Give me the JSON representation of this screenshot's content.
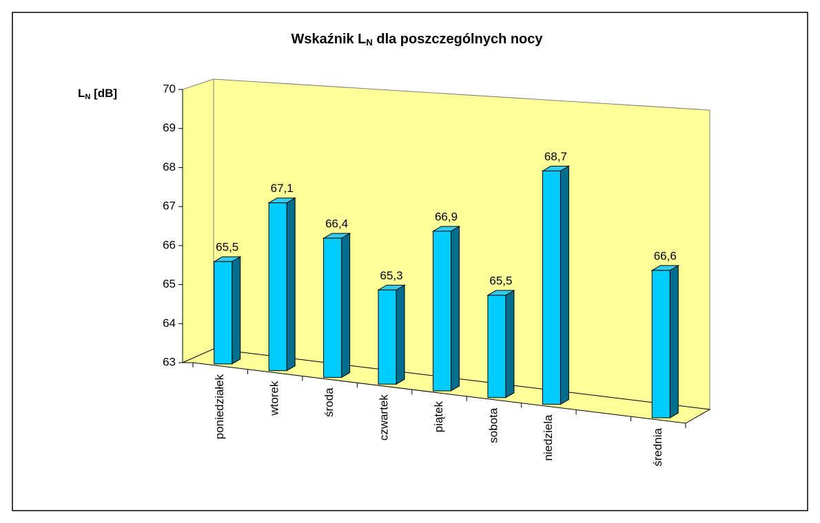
{
  "chart_data": {
    "type": "bar3d",
    "title": {
      "text": "Wskaźnik L",
      "sub": "N",
      "rest": " dla poszczególnych nocy"
    },
    "ylabel": {
      "text": "L",
      "sub": "N",
      "rest": " [dB]"
    },
    "categories": [
      "poniedziałek",
      "wtorek",
      "środa",
      "czwartek",
      "piątek",
      "sobota",
      "niedziela",
      null,
      "średnia"
    ],
    "values": [
      65.5,
      67.1,
      66.4,
      65.3,
      66.9,
      65.5,
      68.7,
      null,
      66.6
    ],
    "value_labels": [
      "65,5",
      "67,1",
      "66,4",
      "65,3",
      "66,9",
      "65,5",
      "68,7",
      null,
      "66,6"
    ],
    "color": "#00ccff",
    "wall_color": "#ffff99",
    "ylim": [
      63,
      70
    ],
    "yticks": [
      63,
      64,
      65,
      66,
      67,
      68,
      69,
      70
    ]
  }
}
